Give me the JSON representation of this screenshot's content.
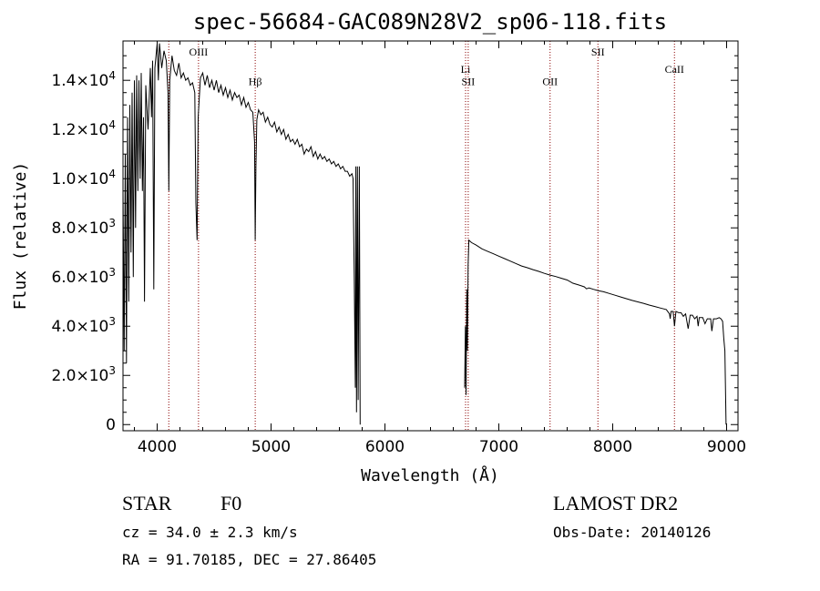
{
  "chart_data": {
    "type": "line",
    "title": "spec-56684-GAC089N28V2_sp06-118.fits",
    "xlabel": "Wavelength (Å)",
    "ylabel": "Flux (relative)",
    "xlim": [
      3700,
      9100
    ],
    "ylim": [
      -250,
      15600
    ],
    "x_ticks": [
      {
        "value": 4000,
        "label": "4000"
      },
      {
        "value": 5000,
        "label": "5000"
      },
      {
        "value": 6000,
        "label": "6000"
      },
      {
        "value": 7000,
        "label": "7000"
      },
      {
        "value": 8000,
        "label": "8000"
      },
      {
        "value": 9000,
        "label": "9000"
      }
    ],
    "y_ticks": [
      {
        "value": 0,
        "mant": "0",
        "exp": ""
      },
      {
        "value": 2000,
        "mant": "2.0×10",
        "exp": "3"
      },
      {
        "value": 4000,
        "mant": "4.0×10",
        "exp": "3"
      },
      {
        "value": 6000,
        "mant": "6.0×10",
        "exp": "3"
      },
      {
        "value": 8000,
        "mant": "8.0×10",
        "exp": "3"
      },
      {
        "value": 10000,
        "mant": "1.0×10",
        "exp": "4"
      },
      {
        "value": 12000,
        "mant": "1.2×10",
        "exp": "4"
      },
      {
        "value": 14000,
        "mant": "1.4×10",
        "exp": "4"
      }
    ],
    "line_color": "#000000",
    "marker_color": "#8b0000",
    "spectral_lines": [
      {
        "x": 4102,
        "label": "",
        "label_y": 0
      },
      {
        "x": 4363,
        "label": "OIII",
        "label_y": 15000
      },
      {
        "x": 4861,
        "label": "Hβ",
        "label_y": 13800
      },
      {
        "x": 6708,
        "label": "Li",
        "label_y": 14300
      },
      {
        "x": 6731,
        "label": "SII",
        "label_y": 13800
      },
      {
        "x": 7450,
        "label": "OII",
        "label_y": 13800
      },
      {
        "x": 7870,
        "label": "SII",
        "label_y": 15000
      },
      {
        "x": 8542,
        "label": "CaII",
        "label_y": 14300
      }
    ],
    "series": [
      {
        "values": [
          [
            3700,
            9500
          ],
          [
            3710,
            3000
          ],
          [
            3720,
            11000
          ],
          [
            3730,
            2500
          ],
          [
            3740,
            12500
          ],
          [
            3750,
            5000
          ],
          [
            3760,
            13000
          ],
          [
            3770,
            7000
          ],
          [
            3780,
            13500
          ],
          [
            3790,
            6000
          ],
          [
            3800,
            14000
          ],
          [
            3810,
            8000
          ],
          [
            3820,
            14200
          ],
          [
            3830,
            9500
          ],
          [
            3840,
            14000
          ],
          [
            3850,
            10000
          ],
          [
            3860,
            14300
          ],
          [
            3870,
            9500
          ],
          [
            3880,
            12500
          ],
          [
            3889,
            5000
          ],
          [
            3900,
            13800
          ],
          [
            3920,
            12000
          ],
          [
            3940,
            14500
          ],
          [
            3950,
            12500
          ],
          [
            3960,
            14800
          ],
          [
            3970,
            5500
          ],
          [
            3980,
            14500
          ],
          [
            4000,
            15500
          ],
          [
            4010,
            14000
          ],
          [
            4020,
            15500
          ],
          [
            4040,
            14500
          ],
          [
            4060,
            15200
          ],
          [
            4080,
            14800
          ],
          [
            4095,
            13500
          ],
          [
            4102,
            9500
          ],
          [
            4110,
            14000
          ],
          [
            4130,
            15000
          ],
          [
            4150,
            14400
          ],
          [
            4170,
            14200
          ],
          [
            4190,
            14700
          ],
          [
            4210,
            14100
          ],
          [
            4230,
            14300
          ],
          [
            4250,
            14000
          ],
          [
            4270,
            14100
          ],
          [
            4290,
            13800
          ],
          [
            4310,
            13900
          ],
          [
            4330,
            13500
          ],
          [
            4340,
            9000
          ],
          [
            4350,
            7500
          ],
          [
            4360,
            12500
          ],
          [
            4380,
            14100
          ],
          [
            4400,
            14300
          ],
          [
            4420,
            13800
          ],
          [
            4440,
            14200
          ],
          [
            4460,
            13700
          ],
          [
            4480,
            14000
          ],
          [
            4500,
            13600
          ],
          [
            4520,
            14000
          ],
          [
            4540,
            13500
          ],
          [
            4560,
            13800
          ],
          [
            4580,
            13400
          ],
          [
            4600,
            13700
          ],
          [
            4620,
            13300
          ],
          [
            4640,
            13600
          ],
          [
            4660,
            13200
          ],
          [
            4680,
            13500
          ],
          [
            4700,
            13300
          ],
          [
            4720,
            13400
          ],
          [
            4740,
            13000
          ],
          [
            4760,
            13300
          ],
          [
            4780,
            12900
          ],
          [
            4800,
            13100
          ],
          [
            4820,
            12800
          ],
          [
            4840,
            12700
          ],
          [
            4855,
            11500
          ],
          [
            4861,
            7500
          ],
          [
            4867,
            10500
          ],
          [
            4875,
            12400
          ],
          [
            4890,
            12800
          ],
          [
            4910,
            12600
          ],
          [
            4930,
            12700
          ],
          [
            4950,
            12300
          ],
          [
            4970,
            12500
          ],
          [
            4990,
            12200
          ],
          [
            5010,
            12100
          ],
          [
            5030,
            12300
          ],
          [
            5050,
            11900
          ],
          [
            5070,
            12100
          ],
          [
            5090,
            11800
          ],
          [
            5110,
            12000
          ],
          [
            5130,
            11600
          ],
          [
            5150,
            11800
          ],
          [
            5170,
            11500
          ],
          [
            5190,
            11600
          ],
          [
            5210,
            11400
          ],
          [
            5230,
            11600
          ],
          [
            5250,
            11300
          ],
          [
            5270,
            11400
          ],
          [
            5290,
            11000
          ],
          [
            5310,
            11200
          ],
          [
            5330,
            11100
          ],
          [
            5350,
            11300
          ],
          [
            5370,
            10900
          ],
          [
            5390,
            11100
          ],
          [
            5410,
            10800
          ],
          [
            5430,
            11000
          ],
          [
            5450,
            10800
          ],
          [
            5470,
            10900
          ],
          [
            5490,
            10700
          ],
          [
            5510,
            10800
          ],
          [
            5530,
            10600
          ],
          [
            5550,
            10700
          ],
          [
            5570,
            10500
          ],
          [
            5590,
            10600
          ],
          [
            5610,
            10400
          ],
          [
            5630,
            10500
          ],
          [
            5650,
            10300
          ],
          [
            5670,
            10300
          ],
          [
            5690,
            10100
          ],
          [
            5710,
            10200
          ],
          [
            5720,
            10000
          ],
          [
            5730,
            6000
          ],
          [
            5740,
            1500
          ],
          [
            5745,
            10500
          ],
          [
            5750,
            500
          ],
          [
            5758,
            10500
          ],
          [
            5765,
            1000
          ],
          [
            5775,
            10500
          ],
          [
            5782,
            0
          ]
        ]
      },
      {
        "values": [
          [
            6700,
            1500
          ],
          [
            6706,
            4000
          ],
          [
            6712,
            1200
          ],
          [
            6718,
            5500
          ],
          [
            6724,
            3000
          ],
          [
            6730,
            6500
          ],
          [
            6737,
            7500
          ],
          [
            6760,
            7400
          ],
          [
            6800,
            7300
          ],
          [
            6850,
            7150
          ],
          [
            6900,
            7050
          ],
          [
            6950,
            6950
          ],
          [
            7000,
            6850
          ],
          [
            7050,
            6750
          ],
          [
            7100,
            6650
          ],
          [
            7150,
            6550
          ],
          [
            7200,
            6450
          ],
          [
            7250,
            6380
          ],
          [
            7300,
            6300
          ],
          [
            7350,
            6230
          ],
          [
            7400,
            6150
          ],
          [
            7450,
            6080
          ],
          [
            7500,
            6020
          ],
          [
            7550,
            5950
          ],
          [
            7600,
            5880
          ],
          [
            7650,
            5750
          ],
          [
            7700,
            5680
          ],
          [
            7750,
            5600
          ],
          [
            7770,
            5520
          ],
          [
            7790,
            5560
          ],
          [
            7830,
            5500
          ],
          [
            7870,
            5450
          ],
          [
            7920,
            5400
          ],
          [
            7970,
            5330
          ],
          [
            8020,
            5260
          ],
          [
            8070,
            5190
          ],
          [
            8120,
            5120
          ],
          [
            8170,
            5050
          ],
          [
            8220,
            4990
          ],
          [
            8270,
            4930
          ],
          [
            8320,
            4860
          ],
          [
            8370,
            4800
          ],
          [
            8420,
            4740
          ],
          [
            8470,
            4680
          ],
          [
            8498,
            4500
          ],
          [
            8505,
            4300
          ],
          [
            8512,
            4600
          ],
          [
            8530,
            4600
          ],
          [
            8542,
            4000
          ],
          [
            8555,
            4600
          ],
          [
            8580,
            4550
          ],
          [
            8600,
            4550
          ],
          [
            8620,
            4400
          ],
          [
            8640,
            4500
          ],
          [
            8662,
            3900
          ],
          [
            8680,
            4450
          ],
          [
            8700,
            4450
          ],
          [
            8720,
            4300
          ],
          [
            8740,
            4400
          ],
          [
            8750,
            4000
          ],
          [
            8760,
            4350
          ],
          [
            8790,
            4350
          ],
          [
            8810,
            4100
          ],
          [
            8830,
            4300
          ],
          [
            8860,
            4300
          ],
          [
            8870,
            3800
          ],
          [
            8885,
            4300
          ],
          [
            8910,
            4300
          ],
          [
            8935,
            4350
          ],
          [
            8950,
            4300
          ],
          [
            8965,
            4200
          ],
          [
            8975,
            3500
          ],
          [
            8985,
            3000
          ],
          [
            8995,
            0
          ]
        ]
      }
    ]
  },
  "info": {
    "object_class": "STAR",
    "subclass": "F0",
    "survey": "LAMOST DR2",
    "redshift": "cz = 34.0 ± 2.3 km/s",
    "obs_date": "Obs-Date: 20140126",
    "coords": "RA =  91.70185, DEC =  27.86405"
  }
}
